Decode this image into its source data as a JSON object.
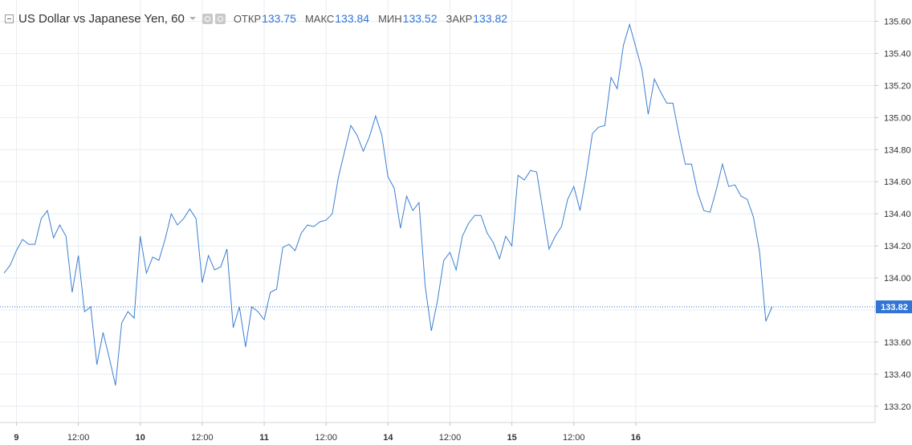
{
  "legend": {
    "symbol": "US Dollar vs Japanese Yen, 60",
    "open_label": "ОТКР",
    "open": "133.75",
    "high_label": "МАКС",
    "high": "133.84",
    "low_label": "МИН",
    "low": "133.52",
    "close_label": "ЗАКР",
    "close": "133.82"
  },
  "colors": {
    "line": "#3c7fd2",
    "grid": "#e8ecf0",
    "axis_text": "#333333",
    "price_tag": "#3275d6"
  },
  "chart_data": {
    "type": "line",
    "title": "US Dollar vs Japanese Yen, 60",
    "interval": "60",
    "x_tick_labels": [
      "9",
      "12:00",
      "10",
      "12:00",
      "11",
      "12:00",
      "14",
      "12:00",
      "15",
      "12:00",
      "16"
    ],
    "x_tick_index": [
      2,
      12,
      22,
      32,
      42,
      52,
      62,
      72,
      82,
      92,
      102
    ],
    "ylim": [
      133.1,
      135.7
    ],
    "y_ticks": [
      "133.20",
      "133.40",
      "133.60",
      "133.80",
      "134.00",
      "134.20",
      "134.40",
      "134.60",
      "134.80",
      "135.00",
      "135.20",
      "135.40",
      "135.60"
    ],
    "last_price": "133.82",
    "series": [
      {
        "values": [
          134.03,
          134.08,
          134.17,
          134.24,
          134.21,
          134.21,
          134.37,
          134.42,
          134.25,
          134.33,
          134.26,
          133.91,
          134.14,
          133.79,
          133.82,
          133.46,
          133.66,
          133.5,
          133.33,
          133.72,
          133.79,
          133.75,
          134.26,
          134.03,
          134.13,
          134.11,
          134.24,
          134.4,
          134.33,
          134.37,
          134.43,
          134.37,
          133.97,
          134.14,
          134.05,
          134.07,
          134.18,
          133.69,
          133.82,
          133.57,
          133.82,
          133.79,
          133.74,
          133.91,
          133.93,
          134.19,
          134.21,
          134.17,
          134.28,
          134.33,
          134.32,
          134.35,
          134.36,
          134.4,
          134.63,
          134.79,
          134.95,
          134.89,
          134.79,
          134.88,
          135.01,
          134.89,
          134.63,
          134.56,
          134.31,
          134.51,
          134.42,
          134.47,
          133.95,
          133.67,
          133.86,
          134.11,
          134.16,
          134.05,
          134.26,
          134.34,
          134.39,
          134.39,
          134.28,
          134.22,
          134.12,
          134.26,
          134.2,
          134.64,
          134.61,
          134.67,
          134.66,
          134.42,
          134.18,
          134.26,
          134.32,
          134.49,
          134.57,
          134.42,
          134.64,
          134.9,
          134.94,
          134.95,
          135.25,
          135.18,
          135.45,
          135.58,
          135.44,
          135.3,
          135.02,
          135.24,
          135.16,
          135.09,
          135.09,
          134.89,
          134.71,
          134.71,
          134.53,
          134.42,
          134.41,
          134.55,
          134.71,
          134.57,
          134.58,
          134.51,
          134.49,
          134.38,
          134.16,
          133.73,
          133.82
        ]
      }
    ]
  }
}
